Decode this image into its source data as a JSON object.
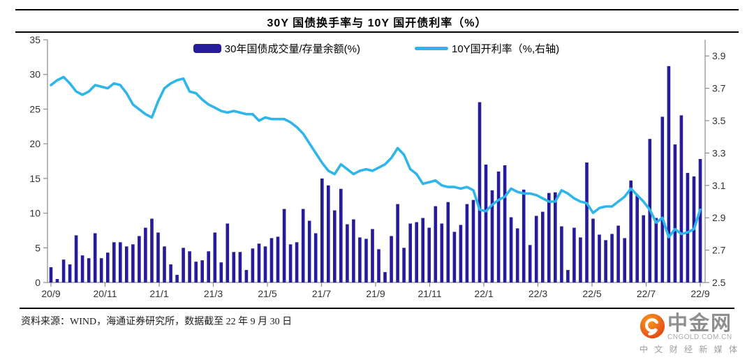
{
  "title": "30Y 国债换手率与 10Y 国开债利率（%）",
  "legend": {
    "bar_label": "30年国债成交量/存量余额(%)",
    "line_label": "10Y国开利率（%,右轴)"
  },
  "footer": {
    "source_note": "资料来源：WIND，海通证券研究所，数据截至 22 年 9 月 30 日"
  },
  "watermark": {
    "brand": "中金网",
    "domain": "CNGOLD.COM.CN",
    "tagline": "中 文 财 经 新 媒 体",
    "logo_colors": [
      "#e23a15",
      "#f89b1c"
    ]
  },
  "chart_data": {
    "type": "bar+line",
    "title": "30Y 国债换手率与 10Y 国开债利率（%）",
    "x_frequency": "weekly",
    "x_tick_labels": [
      "20/9",
      "20/11",
      "21/1",
      "21/3",
      "21/5",
      "21/7",
      "21/9",
      "21/11",
      "22/1",
      "22/3",
      "22/5",
      "22/7",
      "22/9"
    ],
    "left_axis": {
      "range": [
        0,
        35
      ],
      "ticks": [
        0,
        5,
        10,
        15,
        20,
        25,
        30,
        35
      ]
    },
    "right_axis": {
      "range": [
        2.5,
        4.0
      ],
      "ticks": [
        2.5,
        2.7,
        2.9,
        3.1,
        3.3,
        3.5,
        3.7,
        3.9
      ]
    },
    "grid": false,
    "legend_position": "top-center",
    "series": [
      {
        "name": "30年国债成交量/存量余额(%)",
        "type": "bar",
        "axis": "left",
        "color": "#261c9a",
        "values": [
          2.2,
          0.5,
          3.3,
          2.6,
          6.8,
          3.9,
          3.5,
          7.1,
          3.5,
          4.3,
          5.8,
          5.8,
          5.2,
          5.5,
          6.7,
          7.9,
          9.2,
          7.2,
          5.2,
          2.6,
          1.1,
          5.0,
          4.5,
          3.0,
          3.2,
          4.5,
          7.2,
          2.9,
          8.5,
          4.4,
          4.4,
          1.8,
          4.9,
          5.6,
          5.2,
          6.4,
          6.6,
          10.6,
          5.5,
          5.8,
          10.6,
          8.9,
          7.1,
          15.0,
          14.0,
          10.4,
          13.5,
          8.4,
          9.1,
          6.5,
          6.3,
          7.7,
          4.8,
          1.5,
          6.7,
          11.3,
          5.0,
          8.5,
          8.7,
          9.3,
          7.9,
          11.0,
          8.5,
          11.6,
          7.3,
          8.3,
          11.3,
          11.9,
          26.0,
          17.0,
          13.3,
          16.0,
          16.9,
          9.4,
          7.8,
          13.4,
          5.4,
          9.6,
          10.2,
          12.9,
          13.0,
          8.1,
          1.8,
          7.9,
          6.5,
          17.3,
          9.2,
          6.9,
          6.1,
          7.0,
          8.2,
          6.4,
          14.7,
          12.6,
          9.7,
          20.7,
          9.3,
          23.9,
          31.2,
          19.9,
          24.1,
          15.8,
          15.3,
          17.8
        ]
      },
      {
        "name": "10Y国开利率（%,右轴)",
        "type": "line",
        "axis": "right",
        "color": "#2eb5ea",
        "values": [
          3.72,
          3.75,
          3.77,
          3.73,
          3.68,
          3.66,
          3.68,
          3.72,
          3.71,
          3.7,
          3.73,
          3.72,
          3.67,
          3.6,
          3.57,
          3.54,
          3.52,
          3.62,
          3.7,
          3.73,
          3.75,
          3.76,
          3.68,
          3.67,
          3.63,
          3.6,
          3.58,
          3.56,
          3.55,
          3.56,
          3.55,
          3.54,
          3.54,
          3.5,
          3.52,
          3.51,
          3.51,
          3.51,
          3.49,
          3.46,
          3.42,
          3.36,
          3.3,
          3.24,
          3.19,
          3.17,
          3.23,
          3.2,
          3.17,
          3.19,
          3.2,
          3.19,
          3.21,
          3.23,
          3.27,
          3.33,
          3.29,
          3.2,
          3.17,
          3.11,
          3.12,
          3.13,
          3.1,
          3.09,
          3.09,
          3.08,
          3.09,
          3.07,
          2.95,
          2.94,
          2.98,
          3.01,
          3.03,
          3.08,
          3.06,
          3.05,
          3.05,
          3.04,
          3.02,
          3.0,
          3.0,
          3.07,
          3.05,
          3.02,
          3.0,
          2.99,
          2.93,
          2.96,
          2.97,
          2.97,
          3.0,
          3.03,
          3.08,
          3.04,
          3.0,
          2.95,
          2.87,
          2.9,
          2.78,
          2.83,
          2.8,
          2.81,
          2.83,
          2.95
        ]
      }
    ]
  }
}
